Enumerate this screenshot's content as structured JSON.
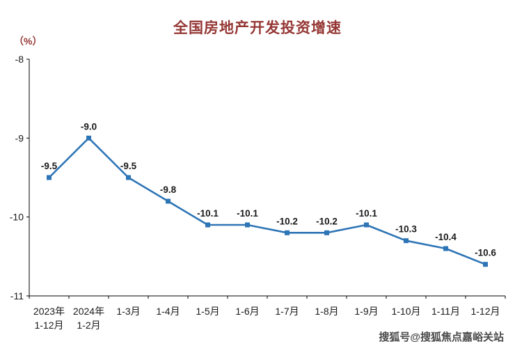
{
  "page": {
    "background": "#ffffff"
  },
  "chart_data": {
    "type": "line",
    "title": "全国房地产开发投资增速",
    "unit_label": "（%）",
    "categories": [
      "2023年\n1-12月",
      "2024年\n1-2月",
      "1-3月",
      "1-4月",
      "1-5月",
      "1-6月",
      "1-7月",
      "1-8月",
      "1-9月",
      "1-10月",
      "1-11月",
      "1-12月"
    ],
    "values": [
      -9.5,
      -9.0,
      -9.5,
      -9.8,
      -10.1,
      -10.1,
      -10.2,
      -10.2,
      -10.1,
      -10.3,
      -10.4,
      -10.6
    ],
    "data_labels": [
      "-9.5",
      "-9.0",
      "-9.5",
      "-9.8",
      "-10.1",
      "-10.1",
      "-10.2",
      "-10.2",
      "-10.1",
      "-10.3",
      "-10.4",
      "-10.6"
    ],
    "ylim": [
      -11,
      -8
    ],
    "yticks": [
      -8,
      -9,
      -10,
      -11
    ],
    "grid": false,
    "legend": "none",
    "colors": {
      "line": "#2E75B6",
      "title": "#953735",
      "axis": "#000000",
      "tick_text": "#1a1a1a",
      "label_text": "#1a1a1a"
    }
  },
  "watermark": {
    "text": "搜狐号@搜狐焦点嘉峪关站"
  }
}
